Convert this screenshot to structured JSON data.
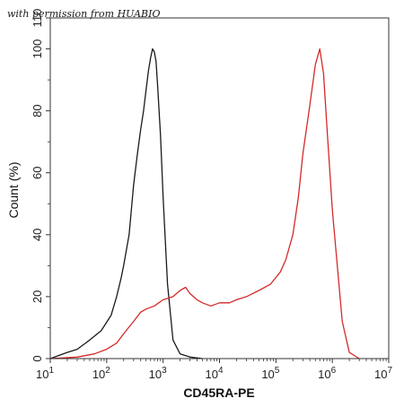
{
  "watermark": "with permission from HUABIO",
  "chart_data": {
    "type": "line",
    "xlabel": "CD45RA-PE",
    "ylabel": "Count  (%)",
    "x_scale": "log",
    "xlim": [
      10,
      10000000
    ],
    "ylim": [
      0,
      110
    ],
    "grid": false,
    "x_ticks": [
      {
        "value": 10,
        "base": "10",
        "exp": "1"
      },
      {
        "value": 100,
        "base": "10",
        "exp": "2"
      },
      {
        "value": 1000,
        "base": "10",
        "exp": "3"
      },
      {
        "value": 10000,
        "base": "10",
        "exp": "4"
      },
      {
        "value": 100000,
        "base": "10",
        "exp": "5"
      },
      {
        "value": 1000000,
        "base": "10",
        "exp": "6"
      },
      {
        "value": 10000000,
        "base": "10",
        "exp": "7"
      }
    ],
    "y_ticks": [
      "0",
      "20",
      "40",
      "60",
      "80",
      "100",
      "110"
    ],
    "series": [
      {
        "color": "#1a1a1a",
        "x": [
          10,
          20,
          30,
          50,
          80,
          120,
          150,
          180,
          200,
          250,
          300,
          350,
          400,
          450,
          500,
          550,
          600,
          650,
          700,
          750,
          800,
          900,
          1000,
          1200,
          1500,
          2000,
          3000,
          5000
        ],
        "y": [
          0,
          2,
          3,
          6,
          9,
          14,
          20,
          26,
          30,
          40,
          56,
          66,
          74,
          80,
          87,
          93,
          97,
          100,
          99,
          96,
          88,
          72,
          52,
          24,
          6,
          1.5,
          0.5,
          0
        ]
      },
      {
        "color": "#d42a2a",
        "x": [
          10,
          30,
          60,
          100,
          150,
          200,
          300,
          400,
          500,
          700,
          1000,
          1500,
          2000,
          2500,
          3000,
          4000,
          5000,
          7000,
          10000,
          15000,
          20000,
          30000,
          50000,
          80000,
          120000,
          150000,
          200000,
          250000,
          300000,
          400000,
          500000,
          600000,
          700000,
          800000,
          1000000,
          1500000,
          2000000,
          3000000
        ],
        "y": [
          0,
          0.5,
          1.5,
          3,
          5,
          8,
          12,
          15,
          16,
          17,
          19,
          20,
          22,
          23,
          21,
          19,
          18,
          17,
          18,
          18,
          19,
          20,
          22,
          24,
          28,
          32,
          40,
          52,
          66,
          82,
          95,
          100,
          92,
          75,
          48,
          12,
          2,
          0
        ]
      }
    ]
  }
}
